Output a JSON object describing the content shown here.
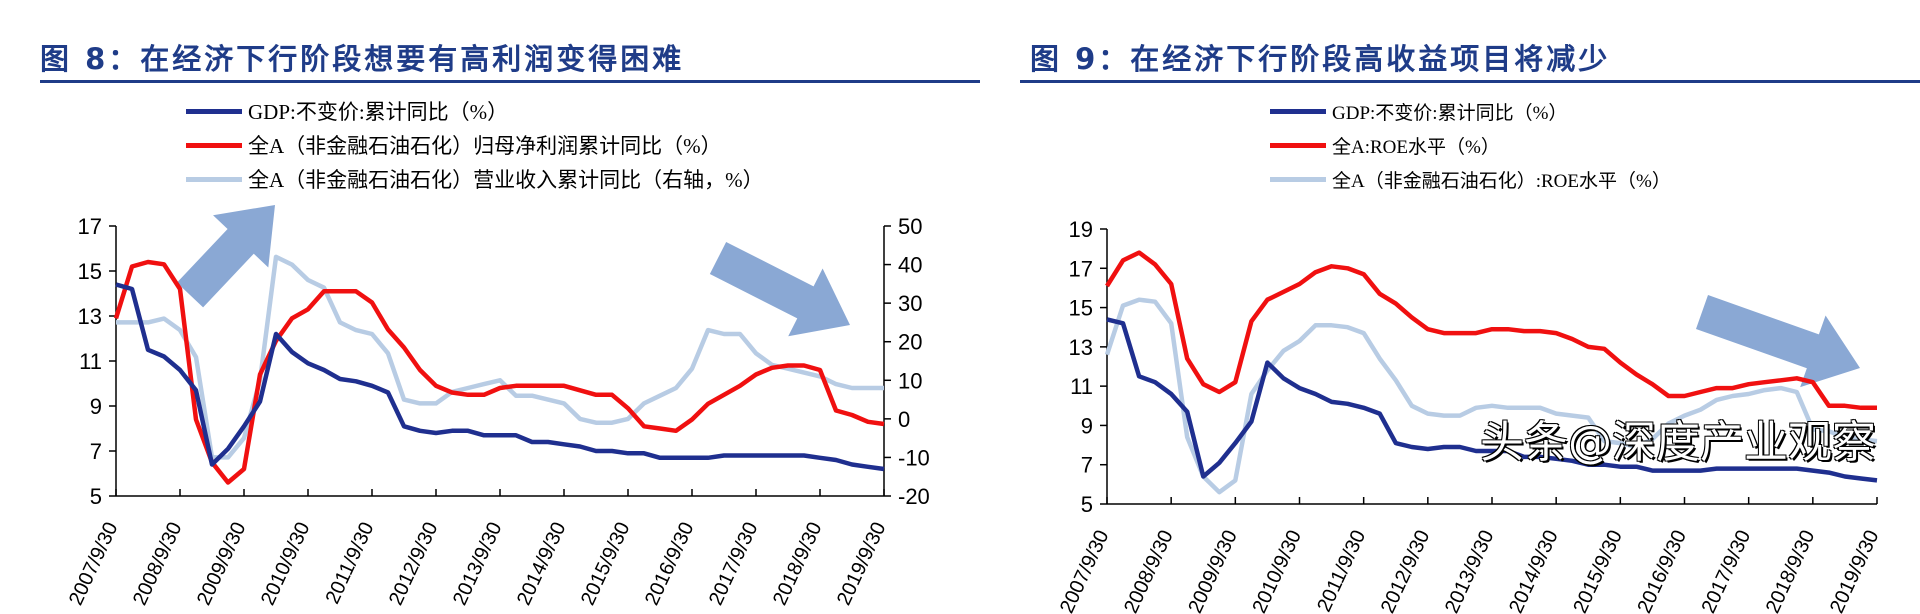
{
  "colors": {
    "title": "#1f3c88",
    "gdp": "#1f2f8f",
    "red": "#f01010",
    "light": "#b8cce4",
    "arrow": "#8aa8d4"
  },
  "watermark": "头条@深度产业观察",
  "chart_data": [
    {
      "type": "line",
      "title": "图 8：在经济下行阶段想要有高利润变得困难",
      "ylim": [
        5,
        17
      ],
      "yticks": [
        "5",
        "7",
        "9",
        "11",
        "13",
        "15",
        "17"
      ],
      "y2lim": [
        -20,
        50
      ],
      "y2ticks": [
        "-20",
        "-10",
        "0",
        "10",
        "20",
        "30",
        "40",
        "50"
      ],
      "x_tick_labels": [
        "2007/9/30",
        "2008/9/30",
        "2009/9/30",
        "2010/9/30",
        "2011/9/30",
        "2012/9/30",
        "2013/9/30",
        "2014/9/30",
        "2015/9/30",
        "2016/9/30",
        "2017/9/30",
        "2018/9/30",
        "2019/9/30"
      ],
      "grid": false,
      "legend_position": "top",
      "annotations": [
        "arrow up-right near 2009-2010",
        "arrow down-right near 2017-2019"
      ],
      "series": [
        {
          "name": "GDP:不变价:累计同比（%）",
          "color_key": "gdp",
          "axis": "left",
          "values": [
            14.4,
            14.2,
            11.5,
            11.2,
            10.6,
            9.7,
            6.4,
            7.1,
            8.1,
            9.2,
            12.2,
            11.4,
            10.9,
            10.6,
            10.2,
            10.1,
            9.9,
            9.6,
            8.1,
            7.9,
            7.8,
            7.9,
            7.9,
            7.7,
            7.7,
            7.7,
            7.4,
            7.4,
            7.3,
            7.2,
            7.0,
            7.0,
            6.9,
            6.9,
            6.7,
            6.7,
            6.7,
            6.7,
            6.8,
            6.8,
            6.8,
            6.8,
            6.8,
            6.8,
            6.7,
            6.6,
            6.4,
            6.3,
            6.2
          ]
        },
        {
          "name": "全A（非金融石油石化）归母净利润累计同比（%）",
          "color_key": "red",
          "axis": "left",
          "values": [
            12.9,
            15.2,
            15.4,
            15.3,
            14.2,
            8.4,
            6.5,
            5.6,
            6.2,
            10.4,
            11.9,
            12.9,
            13.3,
            14.1,
            14.1,
            14.1,
            13.6,
            12.4,
            11.6,
            10.6,
            9.9,
            9.6,
            9.5,
            9.5,
            9.8,
            9.9,
            9.9,
            9.9,
            9.9,
            9.7,
            9.5,
            9.5,
            8.9,
            8.1,
            8.0,
            7.9,
            8.4,
            9.1,
            9.5,
            9.9,
            10.4,
            10.7,
            10.8,
            10.8,
            10.6,
            8.8,
            8.6,
            8.3,
            8.2
          ]
        },
        {
          "name": "全A（非金融石油石化）营业收入累计同比（右轴，%）",
          "color_key": "light",
          "axis": "right",
          "values": [
            25,
            25,
            25,
            26,
            23,
            16,
            -10,
            -10,
            -5,
            10,
            42,
            40,
            36,
            34,
            25,
            23,
            22,
            17,
            5,
            4,
            4,
            7,
            8,
            9,
            10,
            6,
            6,
            5,
            4,
            0,
            -1,
            -1,
            0,
            4,
            6,
            8,
            13,
            23,
            22,
            22,
            17,
            14,
            13,
            12,
            11,
            9,
            8,
            8,
            8
          ]
        }
      ]
    },
    {
      "type": "line",
      "title": "图 9：在经济下行阶段高收益项目将减少",
      "ylim": [
        5,
        19
      ],
      "yticks": [
        "5",
        "7",
        "9",
        "11",
        "13",
        "15",
        "17",
        "19"
      ],
      "x_tick_labels": [
        "2007/9/30",
        "2008/9/30",
        "2009/9/30",
        "2010/9/30",
        "2011/9/30",
        "2012/9/30",
        "2013/9/30",
        "2014/9/30",
        "2015/9/30",
        "2016/9/30",
        "2017/9/30",
        "2018/9/30",
        "2019/9/30"
      ],
      "grid": false,
      "legend_position": "top",
      "annotations": [
        "arrow down-right near 2017-2019"
      ],
      "series": [
        {
          "name": "GDP:不变价:累计同比（%）",
          "color_key": "gdp",
          "axis": "left",
          "values": [
            14.4,
            14.2,
            11.5,
            11.2,
            10.6,
            9.7,
            6.4,
            7.1,
            8.1,
            9.2,
            12.2,
            11.4,
            10.9,
            10.6,
            10.2,
            10.1,
            9.9,
            9.6,
            8.1,
            7.9,
            7.8,
            7.9,
            7.9,
            7.7,
            7.7,
            7.7,
            7.4,
            7.4,
            7.3,
            7.2,
            7.0,
            7.0,
            6.9,
            6.9,
            6.7,
            6.7,
            6.7,
            6.7,
            6.8,
            6.8,
            6.8,
            6.8,
            6.8,
            6.8,
            6.7,
            6.6,
            6.4,
            6.3,
            6.2
          ]
        },
        {
          "name": "全A:ROE水平（%）",
          "color_key": "red",
          "axis": "left",
          "values": [
            16.1,
            17.4,
            17.8,
            17.2,
            16.2,
            12.4,
            11.1,
            10.7,
            11.2,
            14.3,
            15.4,
            15.8,
            16.2,
            16.8,
            17.1,
            17.0,
            16.7,
            15.7,
            15.2,
            14.5,
            13.9,
            13.7,
            13.7,
            13.7,
            13.9,
            13.9,
            13.8,
            13.8,
            13.7,
            13.4,
            13.0,
            12.9,
            12.2,
            11.6,
            11.1,
            10.5,
            10.5,
            10.7,
            10.9,
            10.9,
            11.1,
            11.2,
            11.3,
            11.4,
            11.2,
            10.0,
            10.0,
            9.9,
            9.9
          ]
        },
        {
          "name": "全A（非金融石油石化）:ROE水平（%）",
          "color_key": "light",
          "axis": "left",
          "values": [
            12.6,
            15.1,
            15.4,
            15.3,
            14.2,
            8.4,
            6.4,
            5.6,
            6.2,
            10.6,
            11.8,
            12.8,
            13.3,
            14.1,
            14.1,
            14.0,
            13.7,
            12.4,
            11.3,
            10.0,
            9.6,
            9.5,
            9.5,
            9.9,
            10.0,
            9.9,
            9.9,
            9.9,
            9.6,
            9.5,
            9.4,
            8.2,
            8.1,
            7.9,
            8.3,
            9.1,
            9.5,
            9.8,
            10.3,
            10.5,
            10.6,
            10.8,
            10.9,
            10.7,
            8.8,
            8.7,
            8.4,
            8.3,
            8.2
          ]
        }
      ]
    }
  ]
}
